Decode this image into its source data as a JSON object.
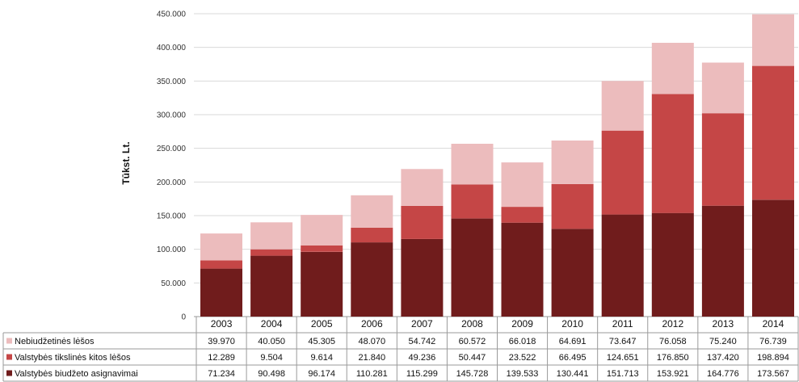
{
  "chart_data": {
    "type": "bar",
    "stacked": true,
    "ylabel": "Tūkst. Lt.",
    "ylim": [
      0,
      450000
    ],
    "yticks": [
      "0",
      "50.000",
      "100.000",
      "150.000",
      "200.000",
      "250.000",
      "300.000",
      "350.000",
      "400.000",
      "450.000"
    ],
    "categories": [
      "2003",
      "2004",
      "2005",
      "2006",
      "2007",
      "2008",
      "2009",
      "2010",
      "2011",
      "2012",
      "2013",
      "2014"
    ],
    "series": [
      {
        "name": "Nebiudžetinės lėšos",
        "color": "#ecbcbd",
        "values": [
          39970,
          40050,
          45305,
          48070,
          54742,
          60572,
          66018,
          64691,
          73647,
          76058,
          75240,
          76739
        ],
        "labels": [
          "39.970",
          "40.050",
          "45.305",
          "48.070",
          "54.742",
          "60.572",
          "66.018",
          "64.691",
          "73.647",
          "76.058",
          "75.240",
          "76.739"
        ]
      },
      {
        "name": "Valstybės tikslinės kitos lėšos",
        "color": "#c54646",
        "values": [
          12289,
          9504,
          9614,
          21840,
          49236,
          50447,
          23522,
          66495,
          124651,
          176850,
          137420,
          198894
        ],
        "labels": [
          "12.289",
          "9.504",
          "9.614",
          "21.840",
          "49.236",
          "50.447",
          "23.522",
          "66.495",
          "124.651",
          "176.850",
          "137.420",
          "198.894"
        ]
      },
      {
        "name": "Valstybės biudžeto asignavimai",
        "color": "#701c1c",
        "values": [
          71234,
          90498,
          96174,
          110281,
          115299,
          145728,
          139533,
          130441,
          151713,
          153921,
          164776,
          173567
        ],
        "labels": [
          "71.234",
          "90.498",
          "96.174",
          "110.281",
          "115.299",
          "145.728",
          "139.533",
          "130.441",
          "151.713",
          "153.921",
          "164.776",
          "173.567"
        ]
      }
    ]
  }
}
